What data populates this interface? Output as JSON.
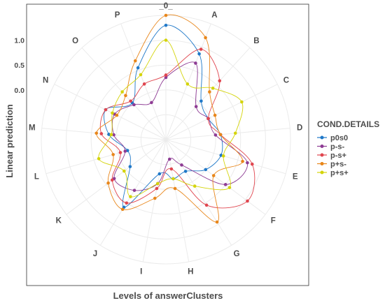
{
  "chart_data": {
    "type": "line",
    "polar": true,
    "categories": [
      "_0_",
      "A",
      "B",
      "C",
      "D",
      "E",
      "F",
      "G",
      "H",
      "I",
      "J",
      "K",
      "L",
      "M",
      "N",
      "O",
      "P"
    ],
    "xlabel": "Levels of answerClusters",
    "ylabel": "Linear prediction",
    "yticks": [
      0.0,
      0.5,
      1.0
    ],
    "ytick_labels": [
      "0.0",
      "0.5",
      "1.0"
    ],
    "ylim": [
      -1.0,
      1.5
    ],
    "grid": true,
    "legend": {
      "title": "COND.DETAILS",
      "position": "right"
    },
    "series": [
      {
        "name": "p0s0",
        "color": "#1f78c8",
        "values": [
          1.3,
          0.85,
          0.05,
          -0.05,
          0.1,
          0.15,
          0.0,
          -0.25,
          -0.2,
          -0.3,
          0.6,
          -0.1,
          -0.2,
          0.15,
          0.35,
          0.0,
          0.55
        ]
      },
      {
        "name": "p-s-",
        "color": "#8e3c94",
        "values": [
          0.25,
          0.65,
          -0.1,
          -0.05,
          0.0,
          0.7,
          0.5,
          -0.4,
          -0.6,
          -0.1,
          0.2,
          0.3,
          -0.15,
          0.05,
          0.15,
          -0.05,
          -0.2
        ]
      },
      {
        "name": "p-s+",
        "color": "#e0464f",
        "values": [
          0.3,
          0.95,
          0.6,
          -0.05,
          0.1,
          0.8,
          1.05,
          0.55,
          -0.4,
          0.0,
          0.5,
          0.35,
          -0.05,
          0.3,
          0.35,
          0.05,
          0.2
        ]
      },
      {
        "name": "p+s-",
        "color": "#e8861a",
        "values": [
          1.5,
          1.2,
          0.3,
          0.1,
          0.1,
          0.6,
          0.2,
          0.95,
          0.0,
          0.2,
          0.65,
          0.45,
          0.1,
          0.4,
          0.1,
          0.2,
          0.7
        ]
      },
      {
        "name": "p+s+",
        "color": "#d4d40a",
        "values": [
          1.0,
          0.2,
          0.4,
          0.7,
          0.4,
          0.2,
          0.6,
          0.1,
          -0.2,
          -0.1,
          0.35,
          0.05,
          0.4,
          0.1,
          0.2,
          0.3,
          0.4
        ]
      }
    ]
  }
}
